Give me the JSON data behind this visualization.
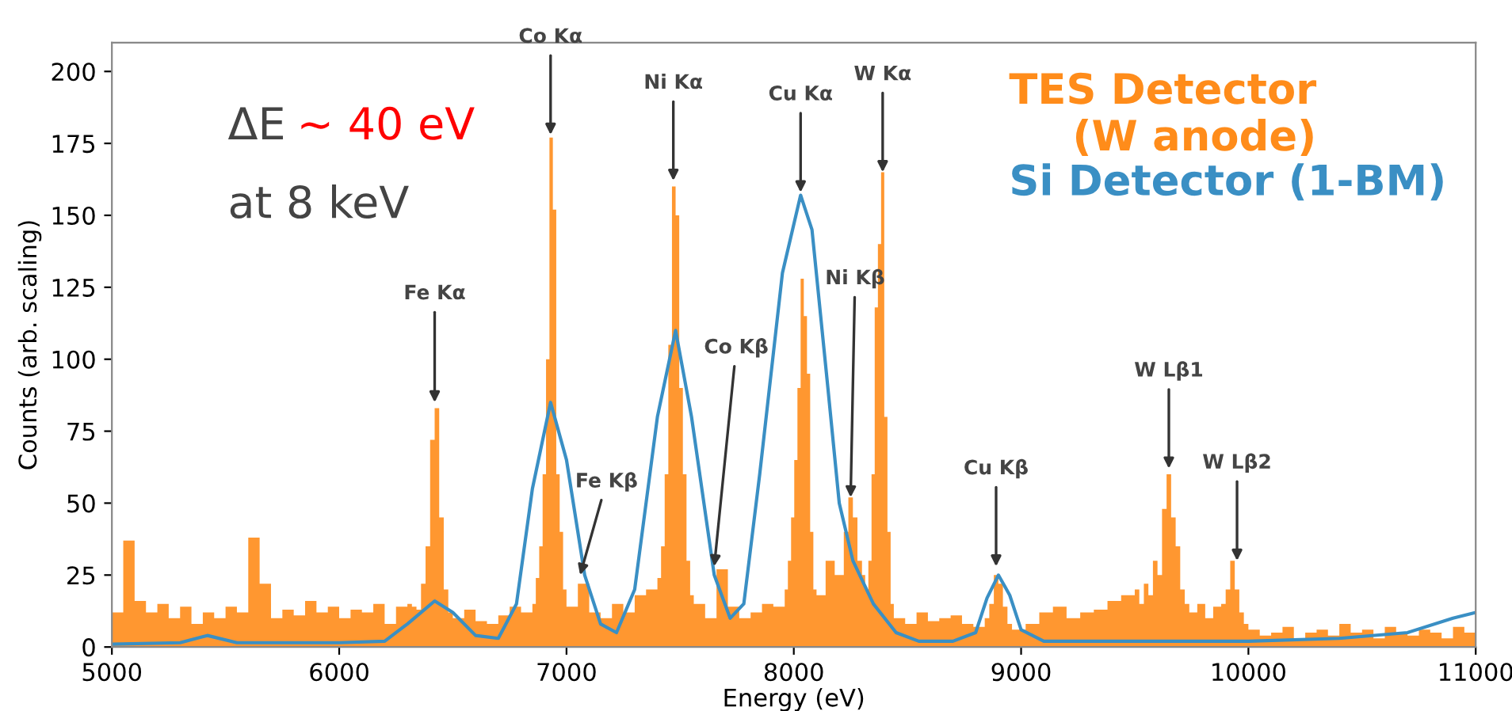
{
  "chart_data": {
    "type": "histogram",
    "xlabel": "Energy (eV)",
    "ylabel": "Counts (arb. scaling)",
    "xlim": [
      5000,
      11000
    ],
    "ylim": [
      0,
      210
    ],
    "xticks": [
      5000,
      6000,
      7000,
      8000,
      9000,
      10000,
      11000
    ],
    "yticks": [
      0,
      25,
      50,
      75,
      100,
      125,
      150,
      175,
      200
    ],
    "grid": false,
    "legend": "top right",
    "series": [
      {
        "name": "TES Detector\n(W anode)",
        "color": "#ff8c1a",
        "bins": [
          5000,
          5050,
          5100,
          5150,
          5200,
          5250,
          5300,
          5350,
          5400,
          5450,
          5500,
          5550,
          5600,
          5650,
          5700,
          5750,
          5800,
          5850,
          5900,
          5950,
          6000,
          6050,
          6100,
          6150,
          6200,
          6250,
          6300,
          6320,
          6340,
          6360,
          6380,
          6400,
          6420,
          6440,
          6460,
          6480,
          6500,
          6550,
          6600,
          6650,
          6700,
          6750,
          6800,
          6850,
          6865,
          6880,
          6895,
          6910,
          6925,
          6940,
          6955,
          6970,
          6985,
          7000,
          7050,
          7100,
          7150,
          7200,
          7250,
          7300,
          7350,
          7400,
          7416,
          7432,
          7448,
          7464,
          7480,
          7496,
          7512,
          7528,
          7544,
          7560,
          7610,
          7660,
          7710,
          7760,
          7810,
          7860,
          7910,
          7960,
          7974,
          7988,
          8002,
          8016,
          8030,
          8044,
          8058,
          8072,
          8086,
          8100,
          8140,
          8180,
          8220,
          8240,
          8260,
          8280,
          8300,
          8314,
          8328,
          8342,
          8356,
          8370,
          8384,
          8398,
          8412,
          8426,
          8440,
          8490,
          8540,
          8590,
          8640,
          8690,
          8740,
          8790,
          8840,
          8860,
          8880,
          8900,
          8920,
          8940,
          8960,
          9020,
          9080,
          9140,
          9200,
          9260,
          9320,
          9380,
          9440,
          9500,
          9520,
          9540,
          9560,
          9580,
          9600,
          9620,
          9640,
          9660,
          9680,
          9700,
          9720,
          9740,
          9775,
          9810,
          9845,
          9880,
          9900,
          9920,
          9940,
          9960,
          9980,
          10000,
          10050,
          10100,
          10150,
          10200,
          10250,
          10300,
          10350,
          10400,
          10450,
          10500,
          10550,
          10600,
          10650,
          10700,
          10750,
          10800,
          10850,
          10900,
          10950,
          11000
        ],
        "values": [
          12,
          37,
          16,
          12,
          15,
          10,
          14,
          8,
          12,
          10,
          14,
          12,
          38,
          22,
          10,
          13,
          11,
          16,
          12,
          14,
          10,
          13,
          12,
          15,
          8,
          14,
          15,
          14,
          13,
          22,
          35,
          72,
          83,
          45,
          20,
          12,
          10,
          13,
          9,
          8,
          11,
          14,
          12,
          15,
          24,
          35,
          60,
          100,
          177,
          152,
          60,
          40,
          20,
          14,
          22,
          12,
          10,
          15,
          12,
          18,
          20,
          24,
          35,
          60,
          105,
          160,
          150,
          90,
          60,
          30,
          18,
          15,
          10,
          27,
          14,
          10,
          12,
          15,
          14,
          20,
          30,
          45,
          65,
          90,
          128,
          115,
          95,
          40,
          20,
          18,
          30,
          25,
          40,
          52,
          45,
          30,
          25,
          20,
          30,
          60,
          118,
          140,
          165,
          80,
          40,
          15,
          10,
          8,
          12,
          9,
          10,
          11,
          8,
          7,
          10,
          15,
          25,
          22,
          14,
          8,
          6,
          8,
          12,
          14,
          10,
          12,
          13,
          16,
          18,
          20,
          15,
          22,
          18,
          30,
          25,
          48,
          60,
          45,
          35,
          20,
          15,
          12,
          15,
          10,
          14,
          15,
          20,
          30,
          20,
          12,
          8,
          6,
          4,
          5,
          7,
          3,
          5,
          6,
          4,
          8,
          5,
          6,
          3,
          7,
          5,
          4,
          6,
          5,
          3,
          7,
          5
        ]
      },
      {
        "name": "Si Detector (1-BM)",
        "type": "line",
        "color": "#3a8fc4",
        "x": [
          5000,
          5300,
          5420,
          5550,
          6000,
          6200,
          6300,
          6420,
          6500,
          6600,
          6700,
          6780,
          6850,
          6930,
          7000,
          7080,
          7150,
          7220,
          7300,
          7400,
          7480,
          7550,
          7650,
          7720,
          7780,
          7850,
          7950,
          8030,
          8080,
          8150,
          8200,
          8260,
          8350,
          8450,
          8550,
          8700,
          8800,
          8850,
          8900,
          8950,
          9000,
          9100,
          9500,
          10000,
          10400,
          10700,
          10900,
          11000
        ],
        "values": [
          1,
          1.5,
          4,
          1.5,
          1.5,
          2,
          8,
          16,
          12,
          4,
          3,
          15,
          55,
          85,
          65,
          25,
          8,
          5,
          20,
          80,
          110,
          80,
          25,
          10,
          15,
          60,
          130,
          157,
          145,
          90,
          50,
          30,
          15,
          5,
          2,
          2,
          5,
          17,
          25,
          18,
          6,
          2,
          2,
          2,
          3,
          5,
          10,
          12
        ]
      }
    ],
    "annotations": [
      {
        "text": "Fe Kα",
        "x": 6420,
        "y": 85
      },
      {
        "text": "Co Kα",
        "x": 6930,
        "y": 178
      },
      {
        "text": "Ni Kα",
        "x": 7470,
        "y": 162
      },
      {
        "text": "Fe Kβ",
        "x": 7060,
        "y": 25
      },
      {
        "text": "Co Kβ",
        "x": 7650,
        "y": 28
      },
      {
        "text": "Cu Kα",
        "x": 8030,
        "y": 158
      },
      {
        "text": "Ni Kβ",
        "x": 8250,
        "y": 52
      },
      {
        "text": "W Kα",
        "x": 8391,
        "y": 165
      },
      {
        "text": "Cu Kβ",
        "x": 8890,
        "y": 28
      },
      {
        "text": "W Lβ1",
        "x": 9650,
        "y": 62
      },
      {
        "text": "W Lβ2",
        "x": 9950,
        "y": 30
      },
      "ΔE",
      "~ 40 eV",
      "at 8 keV"
    ]
  }
}
